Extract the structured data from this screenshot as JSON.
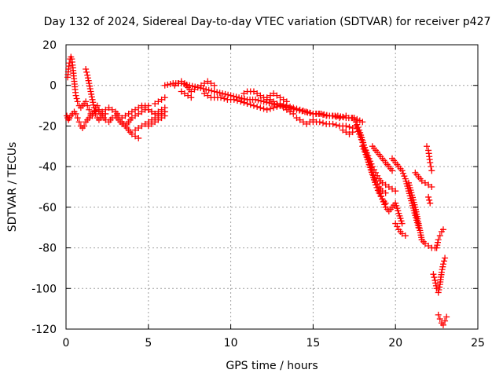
{
  "chart_data": {
    "type": "scatter",
    "title": "Day 132 of 2024, Sidereal Day-to-day VTEC variation (SDTVAR) for receiver p427",
    "xlabel": "GPS time / hours",
    "ylabel": "SDTVAR / TECUs",
    "xlim": [
      0,
      25
    ],
    "ylim": [
      -120,
      20
    ],
    "x_ticks": [
      "0",
      "5",
      "10",
      "15",
      "20",
      "25"
    ],
    "y_ticks": [
      "20",
      "0",
      "-20",
      "-40",
      "-60",
      "-80",
      "-100",
      "-120"
    ],
    "grid": true,
    "marker": "+",
    "series": [
      {
        "name": "t1",
        "color": "#ff0000",
        "x": [
          0.1,
          0.15,
          0.2,
          0.25,
          0.3,
          0.35,
          0.4,
          0.45,
          0.5,
          0.55,
          0.6,
          0.7,
          0.8,
          0.9,
          1.0,
          1.1,
          1.2,
          1.3,
          1.4,
          1.5,
          1.6,
          1.7,
          1.8,
          1.9,
          2.0
        ],
        "y": [
          4,
          8,
          11,
          13,
          14,
          13,
          10,
          6,
          2,
          -2,
          -5,
          -8,
          -10,
          -11,
          -10,
          -9,
          -8,
          -10,
          -12,
          -14,
          -15,
          -13,
          -11,
          -10,
          -12
        ]
      },
      {
        "name": "t2",
        "color": "#ff0000",
        "x": [
          0.2,
          0.3,
          0.4,
          0.5,
          0.6,
          0.7,
          0.8,
          0.9,
          1.0,
          1.1,
          1.2,
          1.3,
          1.4,
          1.5,
          1.6,
          1.8,
          2.0,
          2.2,
          2.4
        ],
        "y": [
          -16,
          -15,
          -14,
          -13,
          -14,
          -16,
          -18,
          -20,
          -21,
          -20,
          -18,
          -17,
          -16,
          -15,
          -14,
          -13,
          -12,
          -13,
          -14
        ]
      },
      {
        "name": "t3",
        "color": "#ff0000",
        "x": [
          0.05,
          0.1,
          0.15,
          0.2
        ],
        "y": [
          -15,
          -16,
          -17,
          -16
        ]
      },
      {
        "name": "t4",
        "color": "#ff0000",
        "x": [
          1.2,
          1.3,
          1.4,
          1.5,
          1.6,
          1.7,
          1.8,
          1.9,
          2.0,
          2.1,
          2.2
        ],
        "y": [
          8,
          5,
          1,
          -3,
          -7,
          -11,
          -14,
          -16,
          -17,
          -16,
          -14
        ]
      },
      {
        "name": "t5",
        "color": "#ff0000",
        "x": [
          2.0,
          2.2,
          2.4,
          2.6,
          2.8,
          3.0,
          3.2,
          3.4,
          3.6,
          3.8,
          4.0,
          4.2,
          4.4,
          4.6,
          4.8,
          5.0,
          5.2,
          5.4,
          5.6,
          5.8,
          6.0
        ],
        "y": [
          -13,
          -15,
          -17,
          -18,
          -16,
          -15,
          -17,
          -19,
          -20,
          -18,
          -16,
          -15,
          -14,
          -13,
          -12,
          -12,
          -13,
          -14,
          -15,
          -14,
          -13
        ]
      },
      {
        "name": "t6",
        "color": "#ff0000",
        "x": [
          2.4,
          2.6,
          2.8,
          3.0,
          3.2,
          3.4,
          3.6,
          3.8,
          4.0,
          4.2,
          4.4,
          4.6,
          4.8,
          5.0
        ],
        "y": [
          -12,
          -11,
          -12,
          -13,
          -15,
          -16,
          -15,
          -14,
          -13,
          -12,
          -11,
          -11,
          -10,
          -10
        ]
      },
      {
        "name": "t7",
        "color": "#ff0000",
        "x": [
          3.4,
          3.6,
          3.8,
          4.0,
          4.2,
          4.4
        ],
        "y": [
          -18,
          -20,
          -22,
          -24,
          -25,
          -26
        ]
      },
      {
        "name": "t8",
        "color": "#ff0000",
        "x": [
          4.2,
          4.4,
          4.6,
          4.8,
          5.0,
          5.2,
          5.4,
          5.6,
          5.8,
          6.0
        ],
        "y": [
          -22,
          -21,
          -20,
          -19,
          -18,
          -17,
          -16,
          -15,
          -14,
          -13
        ]
      },
      {
        "name": "t9",
        "color": "#ff0000",
        "x": [
          4.6,
          4.8,
          5.0,
          5.2,
          5.4,
          5.6,
          5.8,
          6.0
        ],
        "y": [
          -10,
          -11,
          -12,
          -13,
          -14,
          -13,
          -12,
          -11
        ]
      },
      {
        "name": "t10",
        "color": "#ff0000",
        "x": [
          5.0,
          5.2,
          5.4,
          5.6,
          5.8,
          6.0
        ],
        "y": [
          -20,
          -19,
          -18,
          -17,
          -16,
          -15
        ]
      },
      {
        "name": "t11",
        "color": "#ff0000",
        "x": [
          5.4,
          5.6,
          5.8,
          6.0
        ],
        "y": [
          -9,
          -8,
          -7,
          -6
        ]
      },
      {
        "name": "t12",
        "color": "#ff0000",
        "x": [
          6.0,
          6.5,
          7.0,
          7.5,
          8.0,
          8.5,
          9.0,
          9.5,
          10.0,
          10.5,
          11.0,
          11.5,
          12.0,
          12.5,
          13.0,
          13.5,
          14.0,
          14.5,
          15.0,
          15.5,
          16.0,
          16.5,
          17.0,
          17.5,
          18.0
        ],
        "y": [
          0,
          1,
          1,
          0,
          -1,
          -2,
          -3,
          -4,
          -5,
          -6,
          -7,
          -7,
          -8,
          -9,
          -10,
          -11,
          -12,
          -13,
          -14,
          -14,
          -15,
          -15,
          -16,
          -16,
          -18
        ]
      },
      {
        "name": "t13",
        "color": "#ff0000",
        "x": [
          6.6,
          6.8,
          7.0,
          7.2,
          7.4,
          7.6,
          7.8,
          8.0,
          8.2,
          8.4,
          8.6,
          8.8,
          9.0
        ],
        "y": [
          0,
          1,
          2,
          1,
          -1,
          -3,
          -2,
          -1,
          0,
          1,
          2,
          1,
          0
        ]
      },
      {
        "name": "t14",
        "color": "#ff0000",
        "x": [
          7.0,
          7.2,
          7.4,
          7.6
        ],
        "y": [
          -3,
          -4,
          -5,
          -6
        ]
      },
      {
        "name": "t15",
        "color": "#ff0000",
        "x": [
          8.4,
          8.6,
          8.8,
          9.0,
          9.4,
          9.8,
          10.2,
          10.6,
          11.0,
          11.4,
          11.8,
          12.2,
          12.6,
          13.0
        ],
        "y": [
          -4,
          -5,
          -6,
          -6,
          -6,
          -7,
          -7,
          -8,
          -9,
          -10,
          -11,
          -12,
          -11,
          -10
        ]
      },
      {
        "name": "t16",
        "color": "#ff0000",
        "x": [
          10.8,
          11.0,
          11.2,
          11.4,
          11.6,
          11.8,
          12.0,
          12.2,
          12.4,
          12.6,
          12.8,
          13.0,
          13.2,
          13.4
        ],
        "y": [
          -4,
          -3,
          -3,
          -3,
          -4,
          -5,
          -6,
          -6,
          -5,
          -4,
          -5,
          -6,
          -7,
          -8
        ]
      },
      {
        "name": "t17",
        "color": "#ff0000",
        "x": [
          12.0,
          12.2,
          12.4,
          12.6,
          12.8,
          13.0,
          13.2,
          13.4,
          13.6,
          13.8
        ],
        "y": [
          -8,
          -7,
          -7,
          -8,
          -9,
          -10,
          -11,
          -12,
          -13,
          -14
        ]
      },
      {
        "name": "t18",
        "color": "#ff0000",
        "x": [
          13.0,
          13.4,
          13.8,
          14.2,
          14.6,
          15.0,
          15.4,
          15.8,
          16.2,
          16.6,
          17.0
        ],
        "y": [
          -9,
          -10,
          -11,
          -12,
          -13,
          -14,
          -14,
          -15,
          -15,
          -16,
          -15
        ]
      },
      {
        "name": "t19",
        "color": "#ff0000",
        "x": [
          14.0,
          14.2,
          14.4,
          14.6,
          14.8,
          15.0
        ],
        "y": [
          -16,
          -17,
          -18,
          -19,
          -18,
          -17
        ]
      },
      {
        "name": "t20",
        "color": "#ff0000",
        "x": [
          15.0,
          15.4,
          15.8,
          16.2,
          16.6,
          17.0,
          17.4
        ],
        "y": [
          -18,
          -18,
          -19,
          -19,
          -20,
          -20,
          -21
        ]
      },
      {
        "name": "t21",
        "color": "#ff0000",
        "x": [
          16.8,
          17.0,
          17.2,
          17.4
        ],
        "y": [
          -22,
          -23,
          -24,
          -23
        ]
      },
      {
        "name": "t22",
        "color": "#ff0000",
        "x": [
          17.4,
          17.6,
          17.8,
          18.0,
          18.2,
          18.4,
          18.6,
          18.8,
          19.0,
          19.2,
          19.4
        ],
        "y": [
          -16,
          -18,
          -22,
          -27,
          -33,
          -38,
          -43,
          -47,
          -50,
          -52,
          -53
        ]
      },
      {
        "name": "t23",
        "color": "#ff0000",
        "x": [
          17.6,
          17.8,
          18.0,
          18.2,
          18.4,
          18.6,
          18.8,
          19.0,
          19.2,
          19.4,
          19.6,
          19.8,
          20.0
        ],
        "y": [
          -20,
          -24,
          -28,
          -32,
          -36,
          -40,
          -43,
          -46,
          -48,
          -49,
          -50,
          -51,
          -52
        ]
      },
      {
        "name": "t24",
        "color": "#ff0000",
        "x": [
          18.0,
          18.2,
          18.4,
          18.6,
          18.8,
          19.0,
          19.2,
          19.4
        ],
        "y": [
          -30,
          -34,
          -39,
          -44,
          -49,
          -53,
          -56,
          -58
        ]
      },
      {
        "name": "t25",
        "color": "#ff0000",
        "x": [
          18.6,
          18.8,
          19.0,
          19.2,
          19.4,
          19.6,
          19.8
        ],
        "y": [
          -30,
          -32,
          -34,
          -36,
          -38,
          -40,
          -42
        ]
      },
      {
        "name": "t26",
        "color": "#ff0000",
        "x": [
          19.0,
          19.2,
          19.4,
          19.6,
          19.8,
          20.0,
          20.2,
          20.4
        ],
        "y": [
          -52,
          -56,
          -60,
          -62,
          -60,
          -58,
          -63,
          -68
        ]
      },
      {
        "name": "t27",
        "color": "#ff0000",
        "x": [
          19.8,
          20.0,
          20.2,
          20.4,
          20.6,
          20.8,
          21.0,
          21.2,
          21.4
        ],
        "y": [
          -36,
          -38,
          -40,
          -42,
          -46,
          -52,
          -58,
          -64,
          -70
        ]
      },
      {
        "name": "t28",
        "color": "#ff0000",
        "x": [
          20.0,
          20.2,
          20.4,
          20.6
        ],
        "y": [
          -68,
          -71,
          -73,
          -74
        ]
      },
      {
        "name": "t29",
        "color": "#ff0000",
        "x": [
          20.8,
          21.0,
          21.2,
          21.4,
          21.6
        ],
        "y": [
          -48,
          -54,
          -60,
          -68,
          -76
        ]
      },
      {
        "name": "t30",
        "color": "#ff0000",
        "x": [
          21.2,
          21.4,
          21.6,
          21.8,
          22.0,
          22.2
        ],
        "y": [
          -43,
          -45,
          -47,
          -48,
          -49,
          -50
        ]
      },
      {
        "name": "t31",
        "color": "#ff0000",
        "x": [
          21.6,
          21.8,
          22.0,
          22.2,
          22.4
        ],
        "y": [
          -76,
          -78,
          -79,
          -80,
          -80
        ]
      },
      {
        "name": "t32",
        "color": "#ff0000",
        "x": [
          21.9,
          22.0,
          22.05,
          22.1,
          22.15,
          22.2
        ],
        "y": [
          -30,
          -32,
          -35,
          -38,
          -40,
          -42
        ]
      },
      {
        "name": "t33",
        "color": "#ff0000",
        "x": [
          22.0,
          22.1
        ],
        "y": [
          -55,
          -58
        ]
      },
      {
        "name": "t34",
        "color": "#ff0000",
        "x": [
          22.3,
          22.4,
          22.5,
          22.6,
          22.7,
          22.8,
          22.9,
          23.0
        ],
        "y": [
          -93,
          -96,
          -100,
          -102,
          -98,
          -92,
          -88,
          -85
        ]
      },
      {
        "name": "t35",
        "color": "#ff0000",
        "x": [
          22.5,
          22.6,
          22.7,
          22.8,
          22.9
        ],
        "y": [
          -80,
          -76,
          -74,
          -72,
          -71
        ]
      },
      {
        "name": "t36",
        "color": "#ff0000",
        "x": [
          22.6,
          22.7,
          22.8,
          22.9,
          23.0,
          23.1
        ],
        "y": [
          -113,
          -115,
          -117,
          -118,
          -116,
          -114
        ]
      }
    ]
  }
}
